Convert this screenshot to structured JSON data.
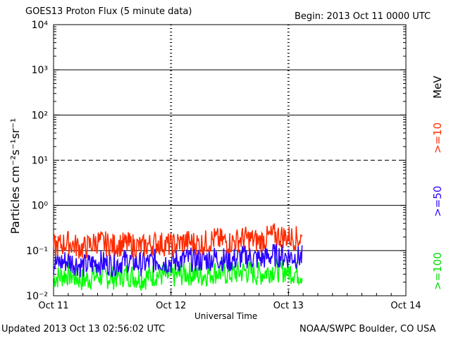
{
  "header": {
    "title": "GOES13 Proton Flux (5 minute data)",
    "begin": "Begin: 2013 Oct 11 0000 UTC"
  },
  "footer": {
    "updated": "Updated 2013 Oct 13 02:56:02 UTC",
    "credit": "NOAA/SWPC Boulder, CO USA"
  },
  "legend": {
    "unit": "MeV",
    "s10": ">=10",
    "s50": ">=50",
    "s100": ">=100"
  },
  "chart_data": {
    "type": "line",
    "title": "GOES13 Proton Flux (5 minute data)",
    "xlabel": "Universal Time",
    "ylabel": "Particles cm⁻²s⁻¹sr⁻¹",
    "yscale": "log",
    "ylim": [
      0.01,
      10000
    ],
    "xlim": [
      "2013-10-11 00:00",
      "2013-10-14 00:00"
    ],
    "ytick_labels": [
      "10⁻²",
      "10⁻¹",
      "10⁰",
      "10¹",
      "10²",
      "10³",
      "10⁴"
    ],
    "xtick_labels": [
      "Oct 11",
      "Oct 12",
      "Oct 13",
      "Oct 14"
    ],
    "threshold_line": 10,
    "x": [
      "2013-10-11 00:00",
      "2013-10-11 03:00",
      "2013-10-11 06:00",
      "2013-10-11 09:00",
      "2013-10-11 12:00",
      "2013-10-11 15:00",
      "2013-10-11 18:00",
      "2013-10-11 21:00",
      "2013-10-12 00:00",
      "2013-10-12 03:00",
      "2013-10-12 06:00",
      "2013-10-12 09:00",
      "2013-10-12 12:00",
      "2013-10-12 15:00",
      "2013-10-12 18:00",
      "2013-10-12 21:00",
      "2013-10-13 00:00",
      "2013-10-13 02:55"
    ],
    "series": [
      {
        "name": ">=10 MeV",
        "color": "#ff2a00",
        "values": [
          0.12,
          0.15,
          0.11,
          0.16,
          0.13,
          0.14,
          0.12,
          0.15,
          0.13,
          0.16,
          0.14,
          0.18,
          0.15,
          0.19,
          0.16,
          0.22,
          0.2,
          0.18
        ]
      },
      {
        "name": ">=50 MeV",
        "color": "#2a00ff",
        "values": [
          0.05,
          0.06,
          0.045,
          0.055,
          0.05,
          0.06,
          0.05,
          0.06,
          0.055,
          0.065,
          0.06,
          0.07,
          0.06,
          0.075,
          0.065,
          0.08,
          0.075,
          0.07
        ]
      },
      {
        "name": ">=100 MeV",
        "color": "#00ff00",
        "values": [
          0.025,
          0.03,
          0.022,
          0.028,
          0.025,
          0.03,
          0.024,
          0.03,
          0.026,
          0.032,
          0.028,
          0.034,
          0.03,
          0.035,
          0.03,
          0.038,
          0.035,
          0.03
        ]
      }
    ]
  }
}
